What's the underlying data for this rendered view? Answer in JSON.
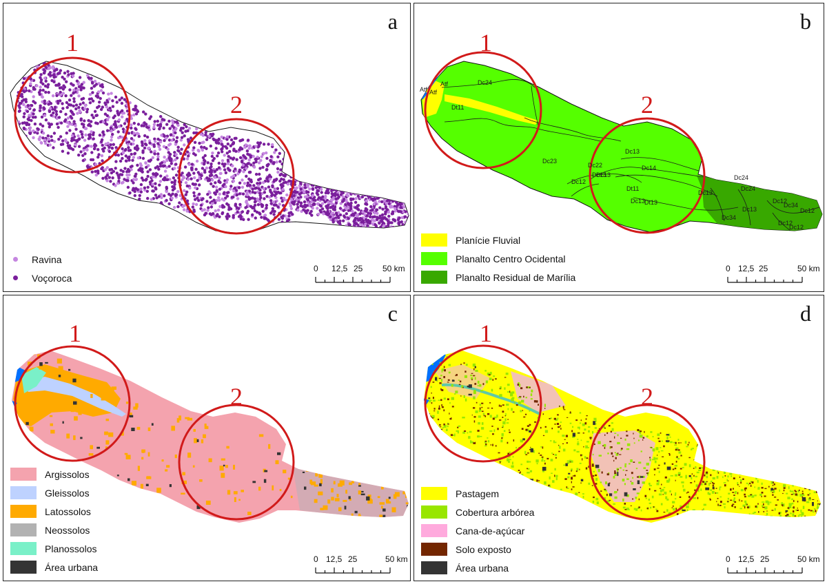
{
  "panels": [
    {
      "letter": "a",
      "circle_labels": [
        "1",
        "2"
      ],
      "legend": [
        {
          "label": "Ravina",
          "color": "#c586e0"
        },
        {
          "label": "Voçoroca",
          "color": "#7a1f9c"
        }
      ]
    },
    {
      "letter": "b",
      "circle_labels": [
        "1",
        "2"
      ],
      "legend": [
        {
          "label": "Planície Fluvial",
          "color": "#ffff00"
        },
        {
          "label": "Planalto Centro Ocidental",
          "color": "#55ff00"
        },
        {
          "label": "Planalto Residual de Marília",
          "color": "#38a800"
        }
      ],
      "unit_labels": [
        "Atf",
        "Atf",
        "Atf",
        "Dc24",
        "Dt11",
        "Dc23",
        "Dc13",
        "Dc14",
        "Dc22",
        "Dc13",
        "Dc12",
        "Dc13",
        "Dt11",
        "Dc13",
        "Dt13",
        "Dc24",
        "Dc13",
        "Dc13",
        "Dc24",
        "Dc12",
        "Dc34",
        "Dc34",
        "Dc12",
        "Dc12",
        "Dc12"
      ]
    },
    {
      "letter": "c",
      "circle_labels": [
        "1",
        "2"
      ],
      "legend": [
        {
          "label": "Argissolos",
          "color": "#f4a3ae"
        },
        {
          "label": "Gleissolos",
          "color": "#bed2ff"
        },
        {
          "label": "Latossolos",
          "color": "#ffaa00"
        },
        {
          "label": "Neossolos",
          "color": "#b2b2b2"
        },
        {
          "label": "Planossolos",
          "color": "#7af0c8"
        },
        {
          "label": "Área urbana",
          "color": "#343434"
        }
      ]
    },
    {
      "letter": "d",
      "circle_labels": [
        "1",
        "2"
      ],
      "legend": [
        {
          "label": "Pastagem",
          "color": "#ffff00"
        },
        {
          "label": "Cobertura arbórea",
          "color": "#98e600"
        },
        {
          "label": "Cana-de-açúcar",
          "color": "#ffaadd"
        },
        {
          "label": "Solo exposto",
          "color": "#732600"
        },
        {
          "label": "Área urbana",
          "color": "#343434"
        }
      ]
    }
  ],
  "scale_bar": {
    "ticks": [
      "0",
      "12,5",
      "25",
      "50 km"
    ]
  },
  "colors": {
    "circle": "#d11a1a",
    "water": "#0070ff"
  }
}
